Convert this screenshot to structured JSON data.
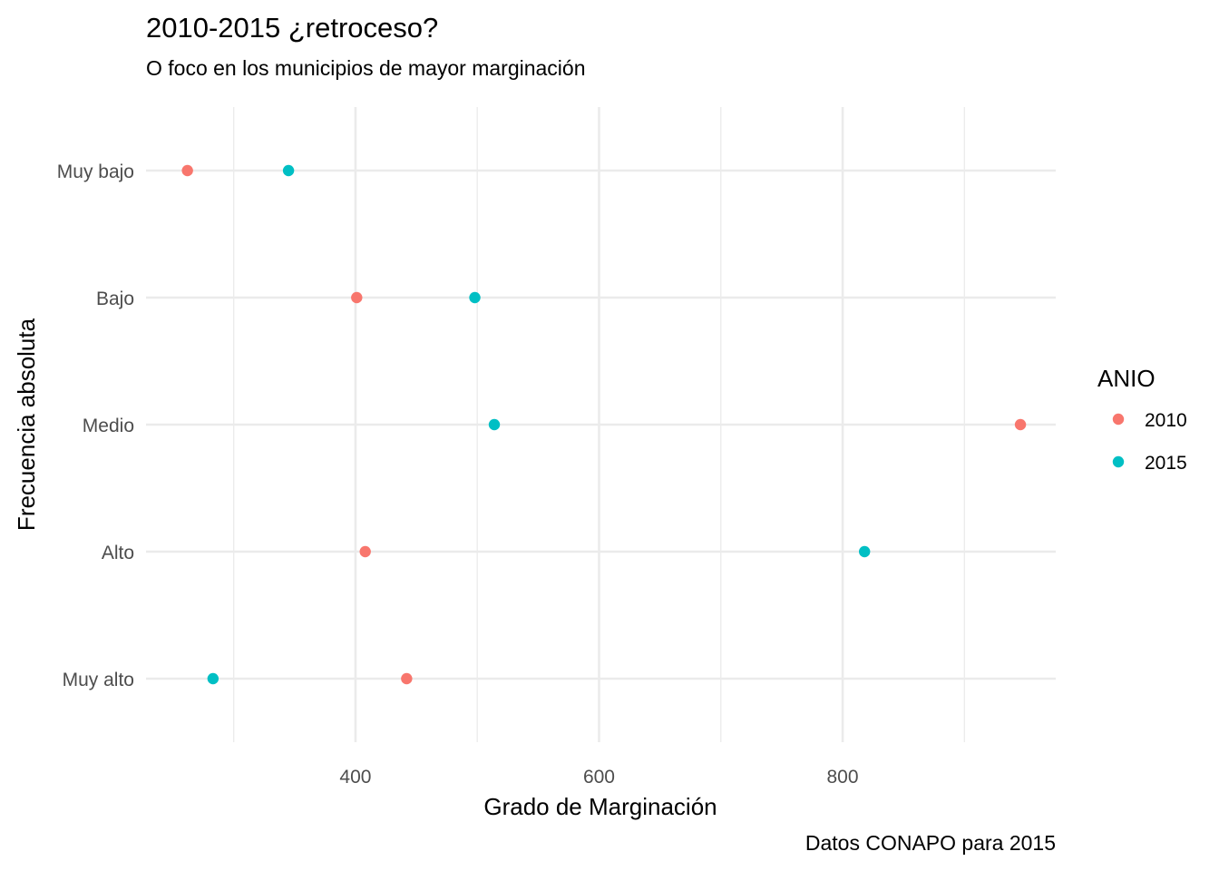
{
  "chart_data": {
    "type": "scatter",
    "title": "2010-2015 ¿retroceso?",
    "subtitle": "O foco en los municipios de mayor marginación",
    "xlabel": "Grado de Marginación",
    "ylabel": "Frecuencia absoluta",
    "caption": "Datos CONAPO para 2015",
    "categories": [
      "Muy bajo",
      "Bajo",
      "Medio",
      "Alto",
      "Muy alto"
    ],
    "xlim": [
      228,
      975
    ],
    "x_ticks": [
      400,
      600,
      800
    ],
    "x_minor_ticks": [
      300,
      500,
      700,
      900
    ],
    "legend": {
      "title": "ANIO",
      "position": "right"
    },
    "grid": true,
    "series": [
      {
        "name": "2010",
        "color": "#F8766D",
        "values": [
          262,
          401,
          946,
          408,
          442
        ]
      },
      {
        "name": "2015",
        "color": "#00BFC4",
        "values": [
          345,
          498,
          514,
          818,
          283
        ]
      }
    ]
  }
}
